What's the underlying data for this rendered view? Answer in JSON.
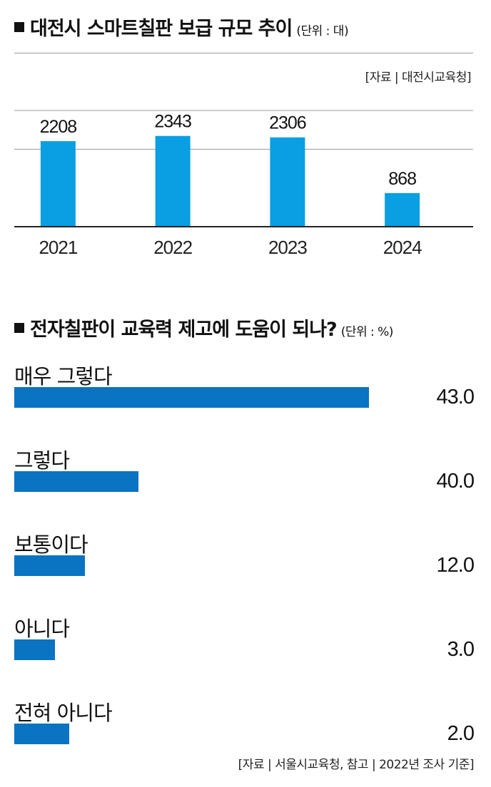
{
  "chart_data": [
    {
      "type": "bar",
      "title": "대전시 스마트칠판 보급 규모 추이",
      "unit": "(단위 : 대)",
      "source": "[자료 | 대전시교육청]",
      "categories": [
        "2021",
        "2022",
        "2023",
        "2024"
      ],
      "values": [
        2208,
        2343,
        2306,
        868
      ],
      "ylim": [
        0,
        3000
      ],
      "grid": true,
      "color": "#0a9fe3"
    },
    {
      "type": "bar",
      "orientation": "horizontal",
      "title": "전자칠판이 교육력 제고에 도움이 되나?",
      "unit": "(단위 : %)",
      "source": "[자료 | 서울시교육청, 참고 | 2022년 조사 기준]",
      "categories": [
        "매우 그렇다",
        "그렇다",
        "보통이다",
        "아니다",
        "전혀 아니다"
      ],
      "values": [
        "43.0",
        "40.0",
        "12.0",
        "3.0",
        "2.0"
      ],
      "bar_fill": [
        1.0,
        0.35,
        0.2,
        0.115,
        0.155
      ],
      "color": "#0a73c2"
    }
  ]
}
